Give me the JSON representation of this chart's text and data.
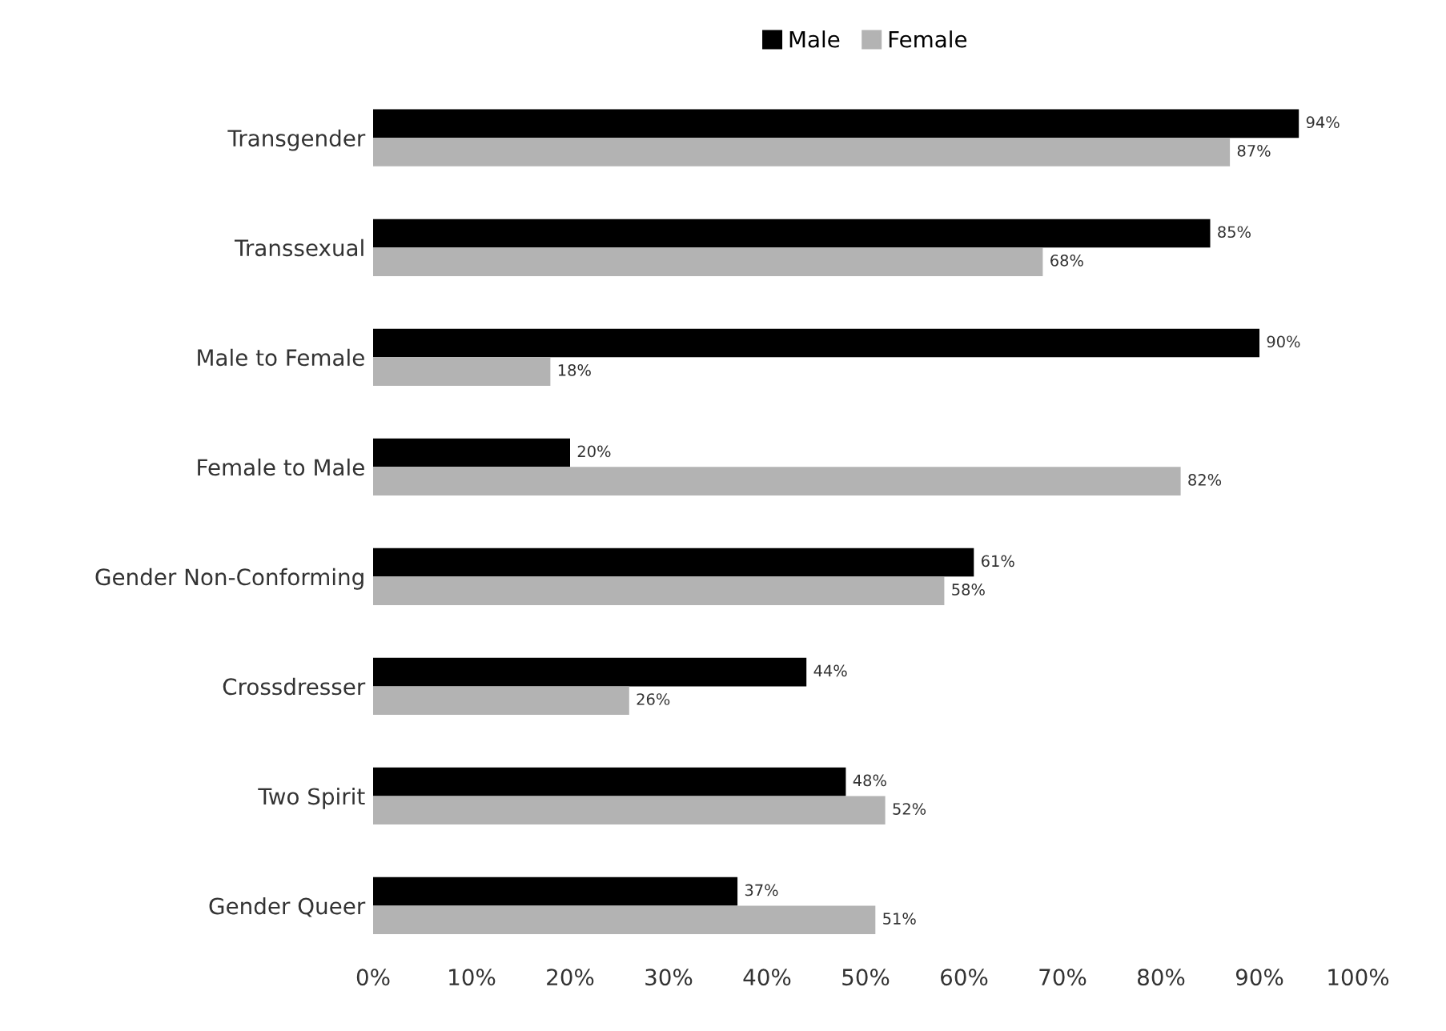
{
  "chart_data": {
    "type": "bar",
    "orientation": "horizontal",
    "categories": [
      "Transgender",
      "Transsexual",
      "Male to Female",
      "Female to Male",
      "Gender Non-Conforming",
      "Crossdresser",
      "Two Spirit",
      "Gender Queer"
    ],
    "series": [
      {
        "name": "Male",
        "color": "#000000",
        "values": [
          94,
          85,
          90,
          20,
          61,
          44,
          48,
          37
        ],
        "value_labels": [
          "94%",
          "85%",
          "90%",
          "20%",
          "61%",
          "44%",
          "48%",
          "37%"
        ]
      },
      {
        "name": "Female",
        "color": "#b3b3b3",
        "values": [
          87,
          68,
          18,
          82,
          58,
          26,
          52,
          51
        ],
        "value_labels": [
          "87%",
          "68%",
          "18%",
          "82%",
          "58%",
          "26%",
          "52%",
          "51%"
        ]
      }
    ],
    "xlim": [
      0,
      100
    ],
    "xticks": [
      {
        "value": 0,
        "label": "0%"
      },
      {
        "value": 10,
        "label": "10%"
      },
      {
        "value": 20,
        "label": "20%"
      },
      {
        "value": 30,
        "label": "30%"
      },
      {
        "value": 40,
        "label": "40%"
      },
      {
        "value": 50,
        "label": "50%"
      },
      {
        "value": 60,
        "label": "60%"
      },
      {
        "value": 70,
        "label": "70%"
      },
      {
        "value": 80,
        "label": "80%"
      },
      {
        "value": 90,
        "label": "90%"
      },
      {
        "value": 100,
        "label": "100%"
      }
    ],
    "grid": false,
    "legend": "top"
  }
}
